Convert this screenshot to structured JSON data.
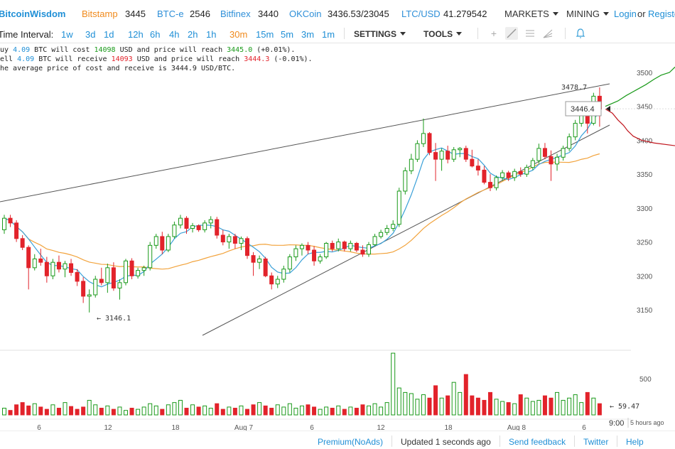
{
  "header": {
    "logo": "BitcoinWisdom",
    "exchanges": [
      {
        "name": "Bitstamp",
        "price": "3445"
      },
      {
        "name": "BTC-e",
        "price": "2546"
      },
      {
        "name": "Bitfinex",
        "price": "3440"
      },
      {
        "name": "OKCoin",
        "price": "3436.53/23045"
      },
      {
        "name": "LTC/USD",
        "price": "41.279542"
      }
    ],
    "markets": "MARKETS",
    "mining": "MINING",
    "login": "Login",
    "or": "or",
    "register": "Registe"
  },
  "toolbar": {
    "time_interval_label": "Time Interval:",
    "intervals": [
      "1w",
      "3d",
      "1d",
      "12h",
      "6h",
      "4h",
      "2h",
      "1h",
      "30m",
      "15m",
      "5m",
      "3m",
      "1m"
    ],
    "active_interval": "30m",
    "settings": "SETTINGS",
    "tools": "TOOLS"
  },
  "info": {
    "line1": {
      "prefix": "uy ",
      "amount": "4.09",
      "mid1": " BTC will cost ",
      "cost": "14098",
      "mid2": " USD and price will reach ",
      "price": "3445.0",
      "suffix": " (+0.01%)."
    },
    "line2": {
      "prefix": "ell ",
      "amount": "4.09",
      "mid1": " BTC will receive ",
      "cost": "14093",
      "mid2": " USD and price will reach ",
      "price": "3444.3",
      "suffix": " (-0.01%)."
    },
    "line3": {
      "prefix": "he average price of cost and receive is ",
      "price": "3444.9",
      "suffix": " USD/BTC."
    }
  },
  "chart_data": {
    "type": "candlestick",
    "y_ticks": [
      3500,
      3450,
      3400,
      3350,
      3300,
      3250,
      3200,
      3150
    ],
    "ylim": [
      3125,
      3525
    ],
    "x_labels": [
      "6",
      "12",
      "18",
      "Aug 7",
      "6",
      "12",
      "18",
      "Aug 8",
      "6"
    ],
    "low_annotation": "← 3146.1",
    "high_annotation": "3478.7",
    "current_price": "3446.4",
    "volume_ticks": [
      "500"
    ],
    "volume_current": "← 59.47",
    "time_label": "9:00",
    "time_ago": "5 hours ago",
    "colors": {
      "up": "#1a9a1a",
      "down": "#e2232b",
      "ma_fast": "#3aa0d8",
      "ma_slow": "#f2a33c",
      "ask": "#1a9a1a",
      "bid": "#c0151d",
      "trendline": "#555555"
    },
    "candles": [
      {
        "o": 3268,
        "h": 3290,
        "l": 3262,
        "c": 3285
      },
      {
        "o": 3285,
        "h": 3290,
        "l": 3272,
        "c": 3278
      },
      {
        "o": 3278,
        "h": 3282,
        "l": 3250,
        "c": 3255
      },
      {
        "o": 3255,
        "h": 3260,
        "l": 3238,
        "c": 3242
      },
      {
        "o": 3242,
        "h": 3245,
        "l": 3180,
        "c": 3212
      },
      {
        "o": 3212,
        "h": 3232,
        "l": 3208,
        "c": 3225
      },
      {
        "o": 3225,
        "h": 3240,
        "l": 3215,
        "c": 3220
      },
      {
        "o": 3220,
        "h": 3228,
        "l": 3190,
        "c": 3200
      },
      {
        "o": 3200,
        "h": 3225,
        "l": 3195,
        "c": 3220
      },
      {
        "o": 3220,
        "h": 3230,
        "l": 3205,
        "c": 3210
      },
      {
        "o": 3210,
        "h": 3222,
        "l": 3198,
        "c": 3218
      },
      {
        "o": 3218,
        "h": 3225,
        "l": 3200,
        "c": 3205
      },
      {
        "o": 3205,
        "h": 3210,
        "l": 3185,
        "c": 3192
      },
      {
        "o": 3192,
        "h": 3198,
        "l": 3160,
        "c": 3170
      },
      {
        "o": 3170,
        "h": 3180,
        "l": 3146,
        "c": 3172
      },
      {
        "o": 3172,
        "h": 3200,
        "l": 3168,
        "c": 3195
      },
      {
        "o": 3195,
        "h": 3212,
        "l": 3186,
        "c": 3190
      },
      {
        "o": 3190,
        "h": 3218,
        "l": 3175,
        "c": 3212
      },
      {
        "o": 3212,
        "h": 3220,
        "l": 3178,
        "c": 3182
      },
      {
        "o": 3182,
        "h": 3195,
        "l": 3165,
        "c": 3190
      },
      {
        "o": 3190,
        "h": 3225,
        "l": 3186,
        "c": 3222
      },
      {
        "o": 3222,
        "h": 3226,
        "l": 3195,
        "c": 3200
      },
      {
        "o": 3200,
        "h": 3212,
        "l": 3196,
        "c": 3208
      },
      {
        "o": 3208,
        "h": 3215,
        "l": 3200,
        "c": 3212
      },
      {
        "o": 3212,
        "h": 3250,
        "l": 3208,
        "c": 3245
      },
      {
        "o": 3245,
        "h": 3262,
        "l": 3240,
        "c": 3258
      },
      {
        "o": 3258,
        "h": 3265,
        "l": 3232,
        "c": 3238
      },
      {
        "o": 3238,
        "h": 3262,
        "l": 3235,
        "c": 3258
      },
      {
        "o": 3258,
        "h": 3280,
        "l": 3255,
        "c": 3275
      },
      {
        "o": 3275,
        "h": 3290,
        "l": 3270,
        "c": 3285
      },
      {
        "o": 3285,
        "h": 3288,
        "l": 3262,
        "c": 3270
      },
      {
        "o": 3270,
        "h": 3278,
        "l": 3264,
        "c": 3274
      },
      {
        "o": 3274,
        "h": 3276,
        "l": 3265,
        "c": 3268
      },
      {
        "o": 3268,
        "h": 3282,
        "l": 3264,
        "c": 3278
      },
      {
        "o": 3278,
        "h": 3288,
        "l": 3270,
        "c": 3283
      },
      {
        "o": 3283,
        "h": 3287,
        "l": 3255,
        "c": 3260
      },
      {
        "o": 3260,
        "h": 3268,
        "l": 3245,
        "c": 3250
      },
      {
        "o": 3250,
        "h": 3262,
        "l": 3240,
        "c": 3258
      },
      {
        "o": 3258,
        "h": 3262,
        "l": 3240,
        "c": 3248
      },
      {
        "o": 3248,
        "h": 3258,
        "l": 3238,
        "c": 3255
      },
      {
        "o": 3255,
        "h": 3258,
        "l": 3225,
        "c": 3230
      },
      {
        "o": 3230,
        "h": 3235,
        "l": 3200,
        "c": 3220
      },
      {
        "o": 3220,
        "h": 3230,
        "l": 3210,
        "c": 3225
      },
      {
        "o": 3225,
        "h": 3228,
        "l": 3198,
        "c": 3200
      },
      {
        "o": 3200,
        "h": 3205,
        "l": 3180,
        "c": 3188
      },
      {
        "o": 3188,
        "h": 3200,
        "l": 3182,
        "c": 3195
      },
      {
        "o": 3195,
        "h": 3215,
        "l": 3190,
        "c": 3210
      },
      {
        "o": 3210,
        "h": 3232,
        "l": 3205,
        "c": 3228
      },
      {
        "o": 3228,
        "h": 3245,
        "l": 3222,
        "c": 3240
      },
      {
        "o": 3240,
        "h": 3248,
        "l": 3230,
        "c": 3245
      },
      {
        "o": 3245,
        "h": 3250,
        "l": 3232,
        "c": 3238
      },
      {
        "o": 3238,
        "h": 3244,
        "l": 3215,
        "c": 3222
      },
      {
        "o": 3222,
        "h": 3232,
        "l": 3218,
        "c": 3228
      },
      {
        "o": 3228,
        "h": 3250,
        "l": 3225,
        "c": 3248
      },
      {
        "o": 3248,
        "h": 3252,
        "l": 3236,
        "c": 3240
      },
      {
        "o": 3240,
        "h": 3255,
        "l": 3236,
        "c": 3250
      },
      {
        "o": 3250,
        "h": 3252,
        "l": 3236,
        "c": 3240
      },
      {
        "o": 3240,
        "h": 3252,
        "l": 3236,
        "c": 3248
      },
      {
        "o": 3248,
        "h": 3250,
        "l": 3235,
        "c": 3238
      },
      {
        "o": 3238,
        "h": 3245,
        "l": 3228,
        "c": 3232
      },
      {
        "o": 3232,
        "h": 3250,
        "l": 3228,
        "c": 3246
      },
      {
        "o": 3246,
        "h": 3262,
        "l": 3244,
        "c": 3258
      },
      {
        "o": 3258,
        "h": 3268,
        "l": 3255,
        "c": 3264
      },
      {
        "o": 3264,
        "h": 3275,
        "l": 3260,
        "c": 3270
      },
      {
        "o": 3270,
        "h": 3282,
        "l": 3266,
        "c": 3276
      },
      {
        "o": 3276,
        "h": 3330,
        "l": 3272,
        "c": 3325
      },
      {
        "o": 3325,
        "h": 3360,
        "l": 3320,
        "c": 3355
      },
      {
        "o": 3355,
        "h": 3380,
        "l": 3350,
        "c": 3372
      },
      {
        "o": 3372,
        "h": 3400,
        "l": 3368,
        "c": 3395
      },
      {
        "o": 3395,
        "h": 3432,
        "l": 3390,
        "c": 3410
      },
      {
        "o": 3410,
        "h": 3412,
        "l": 3378,
        "c": 3382
      },
      {
        "o": 3382,
        "h": 3396,
        "l": 3340,
        "c": 3372
      },
      {
        "o": 3372,
        "h": 3388,
        "l": 3355,
        "c": 3384
      },
      {
        "o": 3384,
        "h": 3392,
        "l": 3366,
        "c": 3372
      },
      {
        "o": 3372,
        "h": 3390,
        "l": 3368,
        "c": 3386
      },
      {
        "o": 3386,
        "h": 3390,
        "l": 3375,
        "c": 3388
      },
      {
        "o": 3388,
        "h": 3392,
        "l": 3368,
        "c": 3372
      },
      {
        "o": 3372,
        "h": 3386,
        "l": 3360,
        "c": 3362
      },
      {
        "o": 3362,
        "h": 3372,
        "l": 3348,
        "c": 3356
      },
      {
        "o": 3356,
        "h": 3362,
        "l": 3335,
        "c": 3338
      },
      {
        "o": 3338,
        "h": 3350,
        "l": 3325,
        "c": 3330
      },
      {
        "o": 3330,
        "h": 3348,
        "l": 3326,
        "c": 3345
      },
      {
        "o": 3345,
        "h": 3356,
        "l": 3340,
        "c": 3352
      },
      {
        "o": 3352,
        "h": 3355,
        "l": 3340,
        "c": 3345
      },
      {
        "o": 3345,
        "h": 3358,
        "l": 3340,
        "c": 3354
      },
      {
        "o": 3354,
        "h": 3360,
        "l": 3346,
        "c": 3350
      },
      {
        "o": 3350,
        "h": 3364,
        "l": 3346,
        "c": 3360
      },
      {
        "o": 3360,
        "h": 3374,
        "l": 3356,
        "c": 3370
      },
      {
        "o": 3370,
        "h": 3395,
        "l": 3366,
        "c": 3388
      },
      {
        "o": 3388,
        "h": 3396,
        "l": 3372,
        "c": 3376
      },
      {
        "o": 3376,
        "h": 3385,
        "l": 3340,
        "c": 3365
      },
      {
        "o": 3365,
        "h": 3380,
        "l": 3355,
        "c": 3375
      },
      {
        "o": 3375,
        "h": 3392,
        "l": 3370,
        "c": 3388
      },
      {
        "o": 3388,
        "h": 3410,
        "l": 3384,
        "c": 3405
      },
      {
        "o": 3405,
        "h": 3430,
        "l": 3400,
        "c": 3425
      },
      {
        "o": 3425,
        "h": 3445,
        "l": 3420,
        "c": 3440
      },
      {
        "o": 3440,
        "h": 3450,
        "l": 3410,
        "c": 3425
      },
      {
        "o": 3425,
        "h": 3470,
        "l": 3422,
        "c": 3465
      },
      {
        "o": 3465,
        "h": 3478,
        "l": 3420,
        "c": 3446
      }
    ],
    "volumes": [
      12,
      8,
      18,
      22,
      16,
      20,
      14,
      10,
      18,
      12,
      22,
      15,
      10,
      14,
      26,
      18,
      12,
      16,
      10,
      14,
      8,
      12,
      10,
      14,
      20,
      16,
      10,
      18,
      22,
      26,
      12,
      18,
      14,
      16,
      12,
      20,
      10,
      14,
      12,
      16,
      10,
      18,
      22,
      16,
      12,
      18,
      14,
      20,
      12,
      16,
      18,
      14,
      10,
      14,
      12,
      16,
      10,
      14,
      12,
      18,
      16,
      20,
      14,
      22,
      110,
      48,
      40,
      38,
      28,
      36,
      30,
      52,
      30,
      34,
      58,
      40,
      72,
      34,
      30,
      26,
      40,
      28,
      24,
      22,
      20,
      36,
      30,
      24,
      26,
      34,
      30,
      40,
      26,
      30,
      36,
      22,
      40,
      30,
      20
    ],
    "ask_depth": [
      [
        3450,
        0
      ],
      [
        3458,
        18
      ],
      [
        3466,
        30
      ],
      [
        3474,
        44
      ],
      [
        3482,
        58
      ],
      [
        3490,
        70
      ],
      [
        3496,
        80
      ],
      [
        3500,
        92
      ],
      [
        3508,
        100
      ]
    ],
    "bid_depth": [
      [
        3446,
        0
      ],
      [
        3440,
        10
      ],
      [
        3430,
        18
      ],
      [
        3422,
        26
      ],
      [
        3414,
        32
      ],
      [
        3406,
        40
      ],
      [
        3400,
        52
      ],
      [
        3396,
        70
      ],
      [
        3392,
        100
      ]
    ]
  },
  "footer": {
    "premium": "Premium(NoAds)",
    "updated": "Updated 1 seconds ago",
    "feedback": "Send feedback",
    "twitter": "Twitter",
    "help": "Help"
  }
}
